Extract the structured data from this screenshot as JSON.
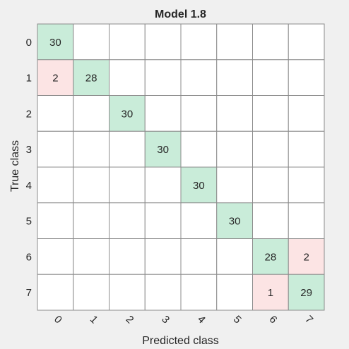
{
  "chart_data": {
    "type": "heatmap",
    "title": "Model 1.8",
    "xlabel": "Predicted class",
    "ylabel": "True class",
    "x_categories": [
      "0",
      "1",
      "2",
      "3",
      "4",
      "5",
      "6",
      "7"
    ],
    "y_categories": [
      "0",
      "1",
      "2",
      "3",
      "4",
      "5",
      "6",
      "7"
    ],
    "matrix": [
      [
        30,
        0,
        0,
        0,
        0,
        0,
        0,
        0
      ],
      [
        2,
        28,
        0,
        0,
        0,
        0,
        0,
        0
      ],
      [
        0,
        0,
        30,
        0,
        0,
        0,
        0,
        0
      ],
      [
        0,
        0,
        0,
        30,
        0,
        0,
        0,
        0
      ],
      [
        0,
        0,
        0,
        0,
        30,
        0,
        0,
        0
      ],
      [
        0,
        0,
        0,
        0,
        0,
        30,
        0,
        0
      ],
      [
        0,
        0,
        0,
        0,
        0,
        0,
        28,
        2
      ],
      [
        0,
        0,
        0,
        0,
        0,
        0,
        1,
        29
      ]
    ],
    "colors": {
      "correct": "#c9ecd9",
      "incorrect": "#fce4e4",
      "empty": "#ffffff",
      "grid": "#8c8c8c",
      "background": "#f0f0f0"
    }
  }
}
